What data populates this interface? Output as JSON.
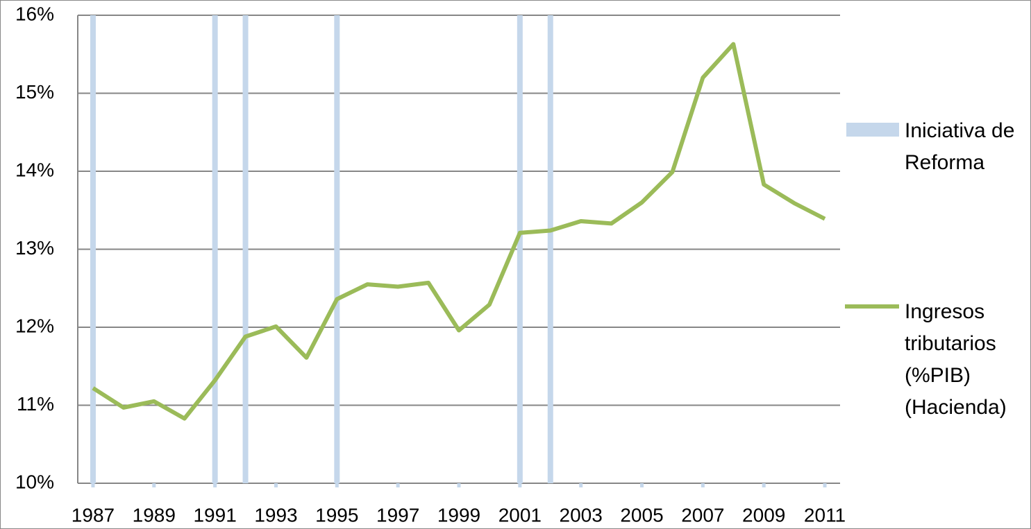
{
  "chart_data": {
    "type": "bar_line",
    "x": [
      1987,
      1988,
      1989,
      1990,
      1991,
      1992,
      1993,
      1994,
      1995,
      1996,
      1997,
      1998,
      1999,
      2000,
      2001,
      2002,
      2003,
      2004,
      2005,
      2006,
      2007,
      2008,
      2009,
      2010,
      2011
    ],
    "xlim": [
      1986.5,
      2011.5
    ],
    "xticks": [
      1987,
      1989,
      1991,
      1993,
      1995,
      1997,
      1999,
      2001,
      2003,
      2005,
      2007,
      2009,
      2011
    ],
    "ylim": [
      10,
      16
    ],
    "yticks": [
      {
        "value": 10,
        "label": "10%"
      },
      {
        "value": 11,
        "label": "11%"
      },
      {
        "value": 12,
        "label": "12%"
      },
      {
        "value": 13,
        "label": "13%"
      },
      {
        "value": 14,
        "label": "14%"
      },
      {
        "value": 15,
        "label": "15%"
      },
      {
        "value": 16,
        "label": "16%"
      }
    ],
    "grid": true,
    "legend": "right",
    "series": [
      {
        "name": "Iniciativa de Reforma",
        "type": "bar",
        "color": "#c5d7eb",
        "values": [
          16,
          null,
          null,
          null,
          16,
          16,
          null,
          null,
          16,
          null,
          null,
          null,
          null,
          null,
          16,
          16,
          null,
          null,
          null,
          null,
          null,
          null,
          null,
          null,
          null
        ]
      },
      {
        "name": "Ingresos tributarios (%PIB) (Hacienda)",
        "type": "line",
        "color": "#9bbb59",
        "values": [
          11.22,
          10.97,
          11.05,
          10.83,
          11.32,
          11.88,
          12.01,
          11.61,
          12.36,
          12.55,
          12.52,
          12.57,
          11.96,
          12.29,
          13.21,
          13.24,
          13.36,
          13.33,
          13.6,
          13.99,
          15.2,
          15.63,
          13.83,
          13.59,
          13.39
        ]
      }
    ]
  }
}
